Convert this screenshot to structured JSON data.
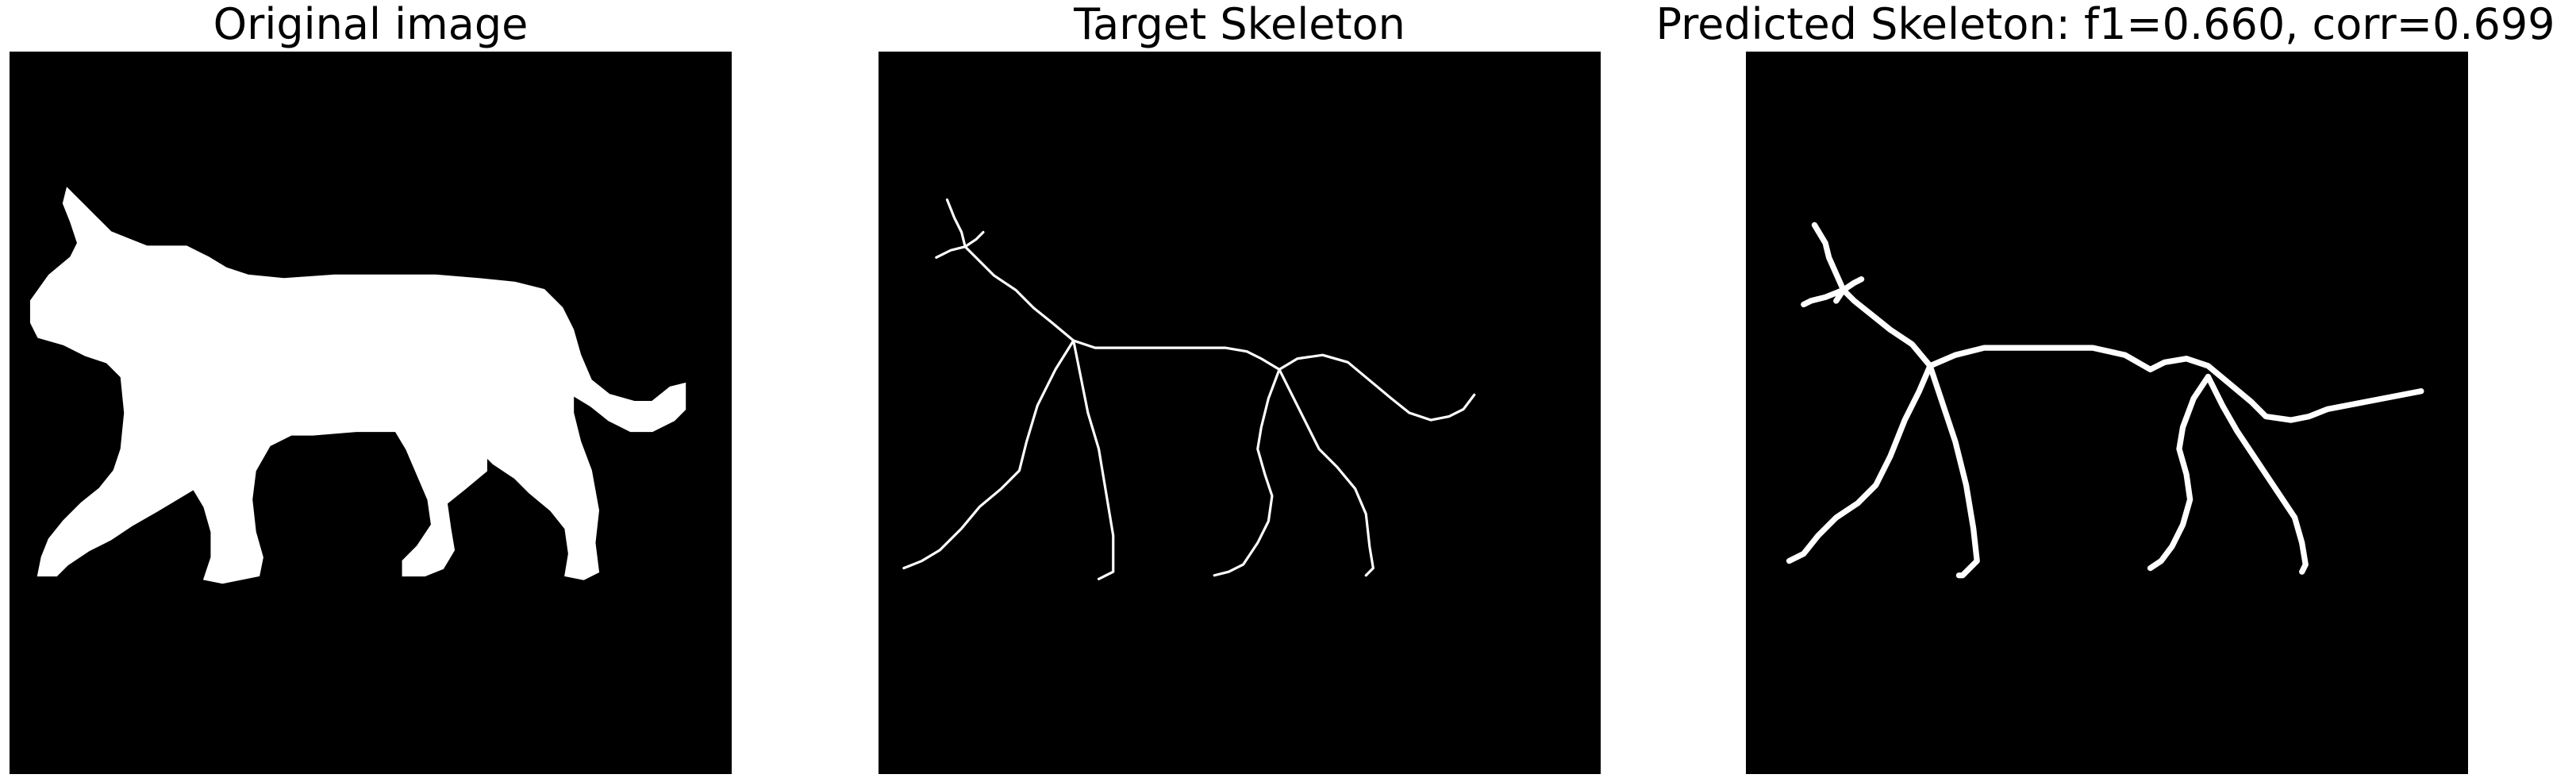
{
  "panels": [
    {
      "id": "original",
      "title": "Original image",
      "content": "white cat silhouette on black background"
    },
    {
      "id": "target",
      "title": "Target Skeleton",
      "content": "thin white skeleton lines of cat shape on black background"
    },
    {
      "id": "predicted",
      "title": "Predicted Skeleton: f1=0.660, corr=0.699",
      "content": "thicker white predicted skeleton lines on black background"
    }
  ],
  "colors": {
    "background": "#000000",
    "foreground": "#ffffff"
  }
}
